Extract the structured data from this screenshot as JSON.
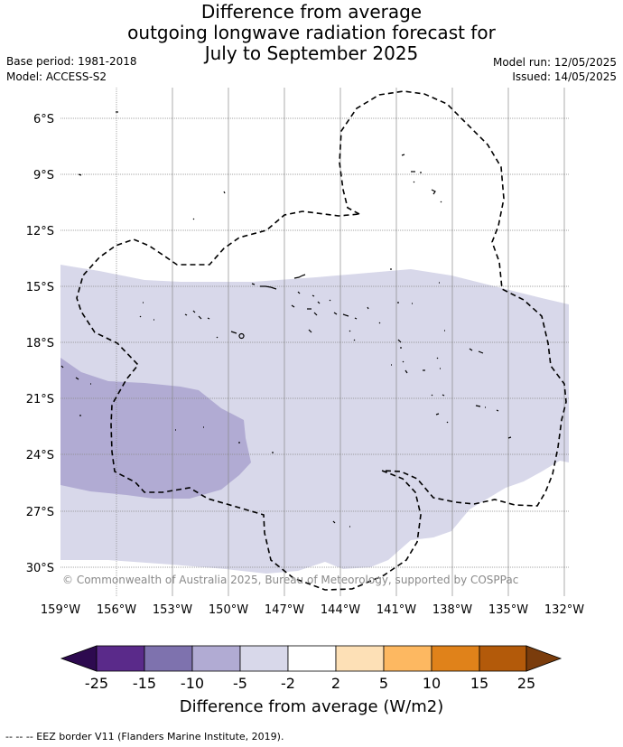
{
  "title": {
    "line1": "Difference from average",
    "line2": "outgoing longwave radiation forecast for",
    "line3": "July to September 2025"
  },
  "meta": {
    "base_period": "Base period: 1981-2018",
    "model": "Model: ACCESS-S2",
    "model_run": "Model run: 12/05/2025",
    "issued": "Issued: 14/05/2025"
  },
  "map": {
    "lat_labels": [
      "6°S",
      "9°S",
      "12°S",
      "15°S",
      "18°S",
      "21°S",
      "24°S",
      "27°S",
      "30°S"
    ],
    "lon_labels": [
      "159°W",
      "156°W",
      "153°W",
      "150°W",
      "147°W",
      "144°W",
      "141°W",
      "138°W",
      "135°W",
      "132°W"
    ],
    "copyright": "© Commonwealth of Australia 2025, Bureau of Meteorology, supported by COSPPac",
    "anomaly_colors": {
      "minus5_to_minus2": "#d8d8ea",
      "minus10_to_minus5": "#b1abd3"
    }
  },
  "colorbar": {
    "title": "Difference from average (W/m2)",
    "ticks": [
      "-25",
      "-15",
      "-10",
      "-5",
      "-2",
      "2",
      "5",
      "10",
      "15",
      "25"
    ],
    "colors": [
      "#2d0a4f",
      "#5a2a8a",
      "#7e72ae",
      "#b1abd3",
      "#d8d8ea",
      "#ffffff",
      "#fde0b6",
      "#fdb861",
      "#e0821a",
      "#b35a0a",
      "#7a3c0c"
    ]
  },
  "footnote": "--  --  -- EEZ border V11 (Flanders Marine Institute, 2019)."
}
